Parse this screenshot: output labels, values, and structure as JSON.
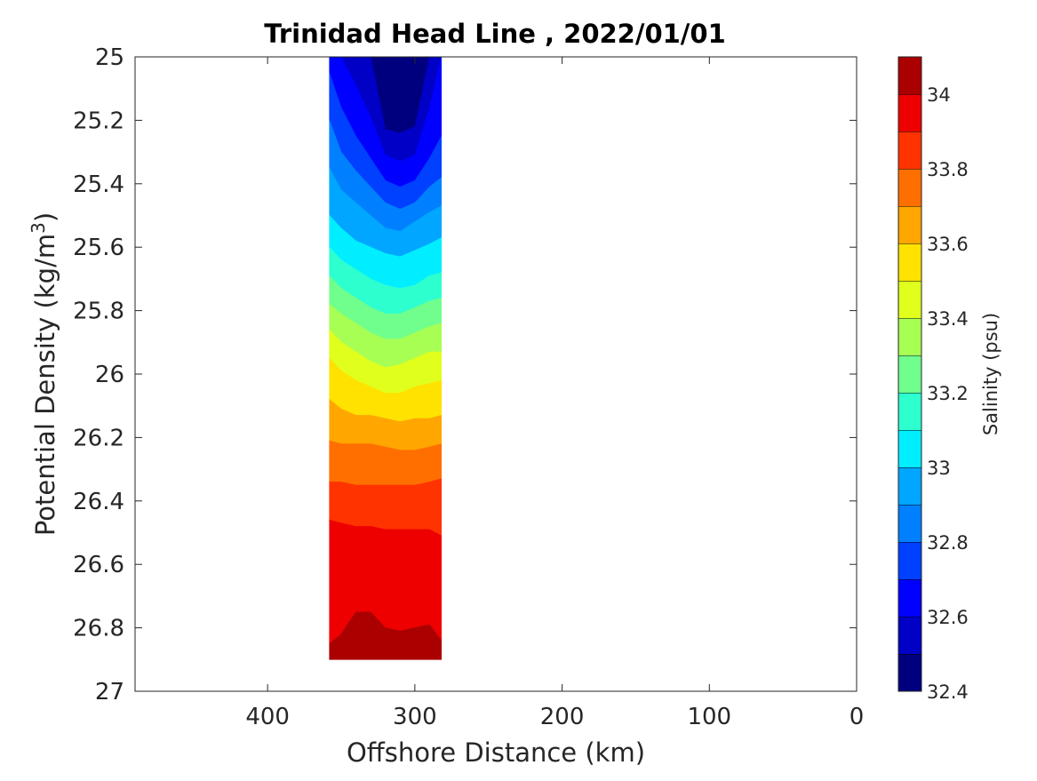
{
  "chart_data": {
    "type": "heatmap",
    "title": "Trinidad Head Line , 2022/01/01",
    "xlabel": "Offshore Distance (km)",
    "ylabel_main": "Potential Density (kg/m",
    "ylabel_sup": "3",
    "ylabel_close": ")",
    "colorbar_label": "Salinity (psu)",
    "xlim": [
      490,
      0
    ],
    "ylim": [
      25,
      27
    ],
    "y_reversed": true,
    "x_ticks": [
      400,
      300,
      200,
      100,
      0
    ],
    "x_tick_labels": [
      "400",
      "300",
      "200",
      "100",
      "0"
    ],
    "y_ticks": [
      25,
      25.2,
      25.4,
      25.6,
      25.8,
      26,
      26.2,
      26.4,
      26.6,
      26.8,
      27
    ],
    "y_tick_labels": [
      "25",
      "25.2",
      "25.4",
      "25.6",
      "25.8",
      "26",
      "26.2",
      "26.4",
      "26.6",
      "26.8",
      "27"
    ],
    "colorbar": {
      "min": 32.4,
      "max": 34.1,
      "ticks": [
        32.4,
        32.6,
        32.8,
        33,
        33.2,
        33.4,
        33.6,
        33.8,
        34
      ],
      "tick_labels": [
        "32.4",
        "32.6",
        "32.8",
        "33",
        "33.2",
        "33.4",
        "33.6",
        "33.8",
        "34"
      ],
      "levels": [
        {
          "range": [
            32.4,
            32.5
          ],
          "color": "#00007f"
        },
        {
          "range": [
            32.5,
            32.6
          ],
          "color": "#0000c6"
        },
        {
          "range": [
            32.6,
            32.7
          ],
          "color": "#0000ff"
        },
        {
          "range": [
            32.7,
            32.8
          ],
          "color": "#0040ff"
        },
        {
          "range": [
            32.8,
            32.9
          ],
          "color": "#0080ff"
        },
        {
          "range": [
            32.9,
            33.0
          ],
          "color": "#00a6ff"
        },
        {
          "range": [
            33.0,
            33.1
          ],
          "color": "#00eeff"
        },
        {
          "range": [
            33.1,
            33.2
          ],
          "color": "#2dffcf"
        },
        {
          "range": [
            33.2,
            33.3
          ],
          "color": "#70ff8c"
        },
        {
          "range": [
            33.3,
            33.4
          ],
          "color": "#a8ff54"
        },
        {
          "range": [
            33.4,
            33.5
          ],
          "color": "#e0ff1c"
        },
        {
          "range": [
            33.5,
            33.6
          ],
          "color": "#ffe200"
        },
        {
          "range": [
            33.6,
            33.7
          ],
          "color": "#ffa600"
        },
        {
          "range": [
            33.7,
            33.8
          ],
          "color": "#ff6f00"
        },
        {
          "range": [
            33.8,
            33.9
          ],
          "color": "#ff3300"
        },
        {
          "range": [
            33.9,
            34.0
          ],
          "color": "#ee0000"
        },
        {
          "range": [
            34.0,
            34.1
          ],
          "color": "#aa0000"
        }
      ]
    },
    "section": {
      "x_range": [
        358,
        282
      ],
      "y_bottom": 26.9,
      "stations_x": [
        358,
        350,
        340,
        330,
        320,
        310,
        300,
        290,
        282
      ],
      "contours": [
        {
          "level": 32.5,
          "y": [
            25.0,
            25.0,
            25.0,
            25.0,
            25.23,
            25.24,
            25.22,
            25.0,
            25.0
          ]
        },
        {
          "level": 32.6,
          "y": [
            25.0,
            25.0,
            25.09,
            25.19,
            25.31,
            25.33,
            25.31,
            25.16,
            25.0
          ]
        },
        {
          "level": 32.7,
          "y": [
            25.05,
            25.16,
            25.25,
            25.32,
            25.39,
            25.41,
            25.39,
            25.32,
            25.25
          ]
        },
        {
          "level": 32.8,
          "y": [
            25.2,
            25.3,
            25.36,
            25.41,
            25.46,
            25.48,
            25.46,
            25.41,
            25.38
          ]
        },
        {
          "level": 32.9,
          "y": [
            25.35,
            25.42,
            25.46,
            25.5,
            25.54,
            25.55,
            25.52,
            25.49,
            25.47
          ]
        },
        {
          "level": 33.0,
          "y": [
            25.5,
            25.54,
            25.58,
            25.6,
            25.62,
            25.63,
            25.61,
            25.59,
            25.57
          ]
        },
        {
          "level": 33.1,
          "y": [
            25.6,
            25.64,
            25.67,
            25.7,
            25.72,
            25.73,
            25.72,
            25.69,
            25.68
          ]
        },
        {
          "level": 33.2,
          "y": [
            25.69,
            25.73,
            25.76,
            25.79,
            25.81,
            25.81,
            25.79,
            25.77,
            25.76
          ]
        },
        {
          "level": 33.3,
          "y": [
            25.78,
            25.81,
            25.84,
            25.87,
            25.89,
            25.89,
            25.87,
            25.85,
            25.84
          ]
        },
        {
          "level": 33.4,
          "y": [
            25.86,
            25.9,
            25.93,
            25.96,
            25.98,
            25.97,
            25.95,
            25.93,
            25.93
          ]
        },
        {
          "level": 33.5,
          "y": [
            25.95,
            25.99,
            26.02,
            26.04,
            26.06,
            26.06,
            26.04,
            26.03,
            26.02
          ]
        },
        {
          "level": 33.6,
          "y": [
            26.08,
            26.11,
            26.13,
            26.13,
            26.14,
            26.15,
            26.14,
            26.14,
            26.13
          ]
        },
        {
          "level": 33.7,
          "y": [
            26.21,
            26.22,
            26.22,
            26.22,
            26.23,
            26.24,
            26.24,
            26.23,
            26.22
          ]
        },
        {
          "level": 33.8,
          "y": [
            26.34,
            26.34,
            26.35,
            26.35,
            26.35,
            26.35,
            26.35,
            26.34,
            26.33
          ]
        },
        {
          "level": 33.9,
          "y": [
            26.46,
            26.47,
            26.48,
            26.48,
            26.49,
            26.49,
            26.49,
            26.49,
            26.51
          ]
        },
        {
          "level": 34.0,
          "y": [
            26.85,
            26.82,
            26.75,
            26.75,
            26.8,
            26.81,
            26.8,
            26.79,
            26.84
          ]
        }
      ]
    }
  }
}
